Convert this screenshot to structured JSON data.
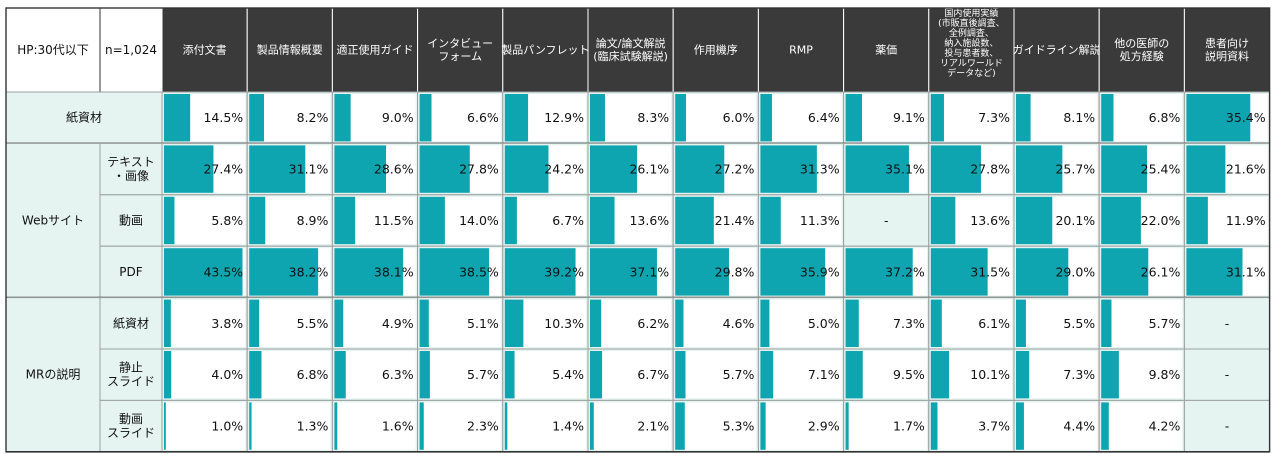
{
  "corner": {
    "label": "HP:30代以下",
    "n": "n=1,024"
  },
  "colors": {
    "header_bg": "#3a3a3a",
    "row_bg": "#e6f4f1",
    "bar": "#0ea5b0",
    "border": "#333333",
    "grid": "#9aa0a0"
  },
  "chart_data": {
    "type": "table",
    "columns": [
      [
        "添付文書"
      ],
      [
        "製品情報概要"
      ],
      [
        "適正使用ガイド"
      ],
      [
        "インタビュー",
        "フォーム"
      ],
      [
        "製品パンフレット"
      ],
      [
        "論文/論文解説",
        "(臨床試験解説)"
      ],
      [
        "作用機序"
      ],
      [
        "RMP"
      ],
      [
        "薬価"
      ],
      [
        "国内使用実績",
        "(市販直後調査、",
        "全例調査、",
        "納入施設数、",
        "投与患者数、",
        "リアルワールド",
        "データなど)"
      ],
      [
        "ガイドライン解説"
      ],
      [
        "他の医師の",
        "処方経験"
      ],
      [
        "患者向け",
        "説明資料"
      ]
    ],
    "groups": [
      {
        "label": "紙資材",
        "rows": [
          {
            "label": [],
            "values": [
              "14.5%",
              "8.2%",
              "9.0%",
              "6.6%",
              "12.9%",
              "8.3%",
              "6.0%",
              "6.4%",
              "9.1%",
              "7.3%",
              "8.1%",
              "6.8%",
              "35.4%"
            ]
          }
        ]
      },
      {
        "label": "Webサイト",
        "rows": [
          {
            "label": [
              "テキスト",
              "・画像"
            ],
            "values": [
              "27.4%",
              "31.1%",
              "28.6%",
              "27.8%",
              "24.2%",
              "26.1%",
              "27.2%",
              "31.3%",
              "35.1%",
              "27.8%",
              "25.7%",
              "25.4%",
              "21.6%"
            ]
          },
          {
            "label": [
              "動画"
            ],
            "values": [
              "5.8%",
              "8.9%",
              "11.5%",
              "14.0%",
              "6.7%",
              "13.6%",
              "21.4%",
              "11.3%",
              "-",
              "13.6%",
              "20.1%",
              "22.0%",
              "11.9%"
            ]
          },
          {
            "label": [
              "PDF"
            ],
            "values": [
              "43.5%",
              "38.2%",
              "38.1%",
              "38.5%",
              "39.2%",
              "37.1%",
              "29.8%",
              "35.9%",
              "37.2%",
              "31.5%",
              "29.0%",
              "26.1%",
              "31.1%"
            ]
          }
        ]
      },
      {
        "label": "MRの説明",
        "rows": [
          {
            "label": [
              "紙資材"
            ],
            "values": [
              "3.8%",
              "5.5%",
              "4.9%",
              "5.1%",
              "10.3%",
              "6.2%",
              "4.6%",
              "5.0%",
              "7.3%",
              "6.1%",
              "5.5%",
              "5.7%",
              "-"
            ]
          },
          {
            "label": [
              "静止",
              "スライド"
            ],
            "values": [
              "4.0%",
              "6.8%",
              "6.3%",
              "5.7%",
              "5.4%",
              "6.7%",
              "5.7%",
              "7.1%",
              "9.5%",
              "10.1%",
              "7.3%",
              "9.8%",
              "-"
            ]
          },
          {
            "label": [
              "動画",
              "スライド"
            ],
            "values": [
              "1.0%",
              "1.3%",
              "1.6%",
              "2.3%",
              "1.4%",
              "2.1%",
              "5.3%",
              "2.9%",
              "1.7%",
              "3.7%",
              "4.4%",
              "4.2%",
              "-"
            ]
          }
        ]
      }
    ]
  }
}
